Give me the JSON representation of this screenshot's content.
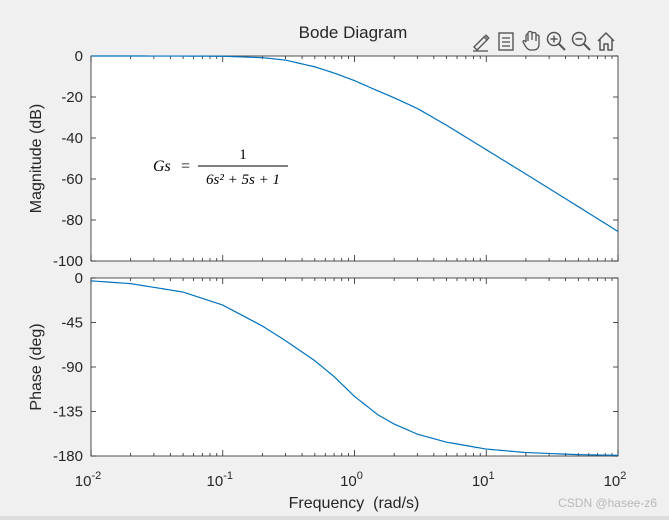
{
  "window": {
    "background": "#f0f0f0"
  },
  "toolbar": {
    "icons": [
      "brush-edit-icon",
      "legend-icon",
      "pan-hand-icon",
      "zoom-in-icon",
      "zoom-out-icon",
      "home-icon"
    ]
  },
  "watermark": "CSDN @hasee-z6",
  "chart_data": {
    "type": "line",
    "title": "Bode Diagram",
    "xlabel": "Frequency  (rad/s)",
    "x_scale": "log",
    "xlim": [
      0.01,
      100
    ],
    "x_ticks": [
      {
        "value": 0.01,
        "base": "10",
        "exp": "-2"
      },
      {
        "value": 0.1,
        "base": "10",
        "exp": "-1"
      },
      {
        "value": 1,
        "base": "10",
        "exp": "0"
      },
      {
        "value": 10,
        "base": "10",
        "exp": "1"
      },
      {
        "value": 100,
        "base": "10",
        "exp": "2"
      }
    ],
    "line_color": "#0072bd",
    "transfer_function": {
      "lhs": "Gs",
      "eq": "=",
      "numerator": "1",
      "denominator": "6s² + 5s + 1"
    },
    "panels": [
      {
        "name": "magnitude",
        "ylabel": "Magnitude (dB)",
        "ylim": [
          -100,
          0
        ],
        "y_ticks": [
          0,
          -20,
          -40,
          -60,
          -80,
          -100
        ],
        "series": [
          {
            "name": "Magnitude",
            "x": [
              0.01,
              0.02,
              0.05,
              0.1,
              0.2,
              0.3,
              0.5,
              0.7,
              1,
              1.5,
              2,
              3,
              5,
              10,
              20,
              50,
              100
            ],
            "values": [
              0.0,
              -0.01,
              -0.03,
              -0.13,
              -0.8,
              -2.0,
              -5.3,
              -8.3,
              -12.0,
              -17.0,
              -20.4,
              -25.6,
              -33.8,
              -45.7,
              -57.6,
              -73.5,
              -85.6
            ]
          }
        ]
      },
      {
        "name": "phase",
        "ylabel": "Phase (deg)",
        "ylim": [
          -180,
          0
        ],
        "y_ticks": [
          0,
          -45,
          -90,
          -135,
          -180
        ],
        "series": [
          {
            "name": "Phase",
            "x": [
              0.01,
              0.02,
              0.05,
              0.1,
              0.2,
              0.3,
              0.5,
              0.7,
              1,
              1.5,
              2,
              3,
              5,
              10,
              20,
              50,
              100
            ],
            "values": [
              -2.9,
              -5.7,
              -14.2,
              -27.4,
              -48.6,
              -63.4,
              -83.7,
              -99.7,
              -119.7,
              -138.2,
              -147.7,
              -157.9,
              -166.0,
              -173.0,
              -176.5,
              -178.6,
              -179.3
            ]
          }
        ]
      }
    ]
  }
}
